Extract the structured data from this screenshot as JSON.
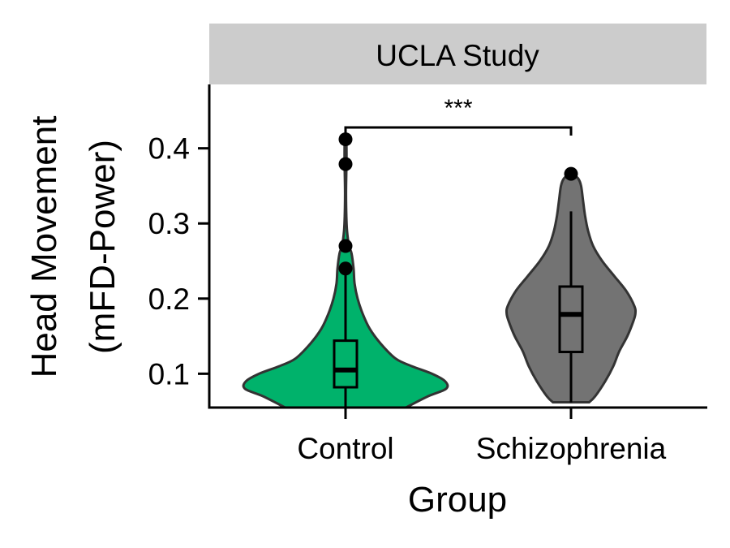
{
  "chart_data": {
    "type": "violin",
    "facet_title": "UCLA Study",
    "xlabel": "Group",
    "ylabel_lines": [
      "Head Movement",
      "(mFD-Power)"
    ],
    "categories": [
      "Control",
      "Schizophrenia"
    ],
    "ylim": [
      0.055,
      0.485
    ],
    "yticks": [
      0.1,
      0.2,
      0.3,
      0.4
    ],
    "ytick_labels": [
      "0.1",
      "0.2",
      "0.3",
      "0.4"
    ],
    "grid": false,
    "legend": "none",
    "significance": {
      "between": [
        "Control",
        "Schizophrenia"
      ],
      "label": "***"
    },
    "groups": [
      {
        "name": "Control",
        "fill": "#00b26b",
        "box": {
          "min": 0.055,
          "q1": 0.082,
          "median": 0.105,
          "q3": 0.144,
          "max": 0.232
        },
        "outliers": [
          0.412,
          0.379,
          0.27,
          0.24
        ],
        "violin_profile": [
          [
            0.055,
            0.6
          ],
          [
            0.07,
            0.82
          ],
          [
            0.08,
            1.0
          ],
          [
            0.09,
            0.99
          ],
          [
            0.1,
            0.86
          ],
          [
            0.11,
            0.66
          ],
          [
            0.12,
            0.5
          ],
          [
            0.14,
            0.35
          ],
          [
            0.16,
            0.24
          ],
          [
            0.18,
            0.17
          ],
          [
            0.2,
            0.12
          ],
          [
            0.22,
            0.09
          ],
          [
            0.24,
            0.08
          ],
          [
            0.26,
            0.06
          ],
          [
            0.27,
            0.035
          ],
          [
            0.29,
            0.015
          ],
          [
            0.31,
            0.008
          ],
          [
            0.34,
            0.005
          ],
          [
            0.37,
            0.008
          ],
          [
            0.39,
            0.01
          ],
          [
            0.41,
            0.008
          ],
          [
            0.415,
            0.0
          ]
        ]
      },
      {
        "name": "Schizophrenia",
        "fill": "#737373",
        "box": {
          "min": 0.062,
          "q1": 0.129,
          "median": 0.179,
          "q3": 0.216,
          "max": 0.316
        },
        "outliers": [
          0.366
        ],
        "violin_profile": [
          [
            0.062,
            0.18
          ],
          [
            0.07,
            0.24
          ],
          [
            0.09,
            0.34
          ],
          [
            0.11,
            0.42
          ],
          [
            0.13,
            0.48
          ],
          [
            0.15,
            0.56
          ],
          [
            0.17,
            0.62
          ],
          [
            0.18,
            0.64
          ],
          [
            0.19,
            0.63
          ],
          [
            0.21,
            0.55
          ],
          [
            0.23,
            0.43
          ],
          [
            0.25,
            0.31
          ],
          [
            0.27,
            0.22
          ],
          [
            0.29,
            0.17
          ],
          [
            0.31,
            0.14
          ],
          [
            0.33,
            0.12
          ],
          [
            0.35,
            0.1
          ],
          [
            0.36,
            0.07
          ],
          [
            0.367,
            0.0
          ]
        ]
      }
    ]
  }
}
